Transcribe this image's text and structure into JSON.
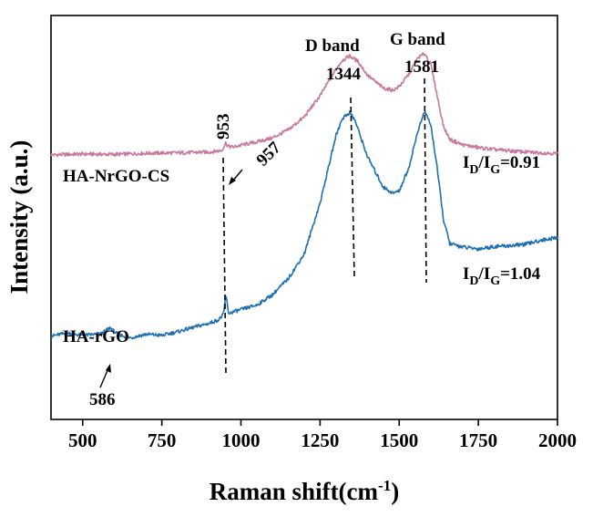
{
  "chart_data": {
    "type": "line",
    "title": "",
    "xlabel": "Raman shift(cm",
    "xlabel_sup": "-1",
    "xlabel_close": ")",
    "ylabel": "Intensity (a.u.)",
    "xlim": [
      400,
      2000
    ],
    "ylim": [
      0,
      100
    ],
    "xticks": [
      "500",
      "750",
      "1000",
      "1250",
      "1500",
      "1750",
      "2000"
    ],
    "grid": false,
    "series": [
      {
        "name": "HA-NrGO-CS",
        "color": "#c8779e",
        "ratio_label": "=0.91",
        "x": [
          400,
          500,
          600,
          700,
          800,
          900,
          940,
          953,
          957,
          975,
          1000,
          1050,
          1100,
          1150,
          1200,
          1250,
          1300,
          1320,
          1344,
          1370,
          1400,
          1450,
          1480,
          1500,
          1530,
          1560,
          1581,
          1600,
          1620,
          1640,
          1660,
          1700,
          1750,
          1800,
          1850,
          1900,
          1950,
          2000
        ],
        "y": [
          65.5,
          65.7,
          65.6,
          65.9,
          66.0,
          66.2,
          66.6,
          68.6,
          67.7,
          67.4,
          67.9,
          68.7,
          69.7,
          71.7,
          74.9,
          80.1,
          86.7,
          88.9,
          90.0,
          88.6,
          85.2,
          82.0,
          81.5,
          82.4,
          85.4,
          89.6,
          90.6,
          87.9,
          80.1,
          72.5,
          69.3,
          68.0,
          67.3,
          66.8,
          66.5,
          66.2,
          66.0,
          65.8
        ]
      },
      {
        "name": "HA-rGO",
        "color": "#1f6fb3",
        "ratio_label": "=1.04",
        "x": [
          400,
          450,
          500,
          560,
          586,
          610,
          650,
          700,
          750,
          800,
          850,
          900,
          930,
          945,
          953,
          960,
          975,
          1000,
          1050,
          1100,
          1150,
          1200,
          1250,
          1300,
          1320,
          1344,
          1360,
          1400,
          1450,
          1480,
          1500,
          1530,
          1560,
          1581,
          1600,
          1620,
          1640,
          1660,
          1700,
          1750,
          1800,
          1850,
          1900,
          1950,
          2000
        ],
        "y": [
          20.6,
          21.4,
          20.8,
          21.2,
          22.7,
          21.1,
          20.2,
          21.1,
          20.8,
          21.7,
          22.8,
          23.8,
          24.7,
          26.0,
          31.0,
          26.3,
          26.6,
          27.2,
          28.3,
          30.9,
          34.9,
          41.0,
          53.6,
          70.2,
          74.5,
          76.0,
          74.1,
          65.0,
          57.5,
          56.0,
          56.6,
          62.2,
          71.7,
          76.3,
          72.9,
          62.2,
          49.4,
          43.5,
          42.7,
          42.2,
          42.8,
          43.0,
          43.4,
          44.4,
          45.0
        ]
      }
    ],
    "annotations": {
      "d_band": "D band",
      "d_band_pos": "1344",
      "g_band": "G band",
      "g_band_pos": "1581",
      "p953": "953",
      "p957": "957",
      "p586": "586",
      "ratio_prefix_i": "I",
      "ratio_sub_d": "D",
      "ratio_sub_g": "G"
    }
  }
}
